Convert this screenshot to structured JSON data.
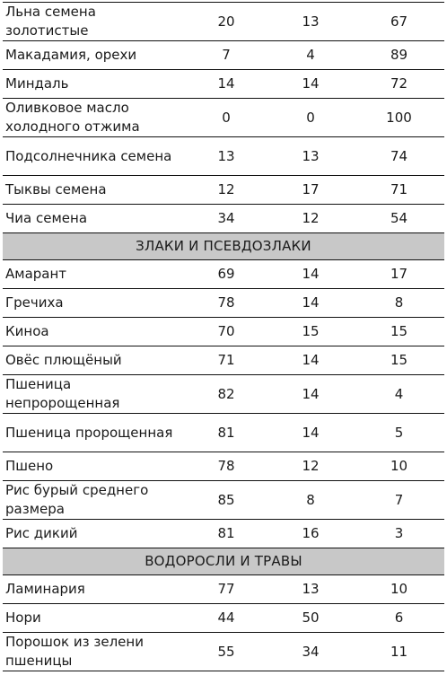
{
  "table": {
    "groups": [
      {
        "title": "",
        "rows": [
          {
            "name": "Льна семена золотистые",
            "a": "20",
            "b": "13",
            "c": "67"
          },
          {
            "name": "Макадамия, орехи",
            "a": "7",
            "b": "4",
            "c": "89"
          },
          {
            "name": "Миндаль",
            "a": "14",
            "b": "14",
            "c": "72"
          },
          {
            "name": "Оливковое масло холодного отжима",
            "a": "0",
            "b": "0",
            "c": "100"
          },
          {
            "name": "Подсолнечника семена",
            "a": "13",
            "b": "13",
            "c": "74"
          },
          {
            "name": "Тыквы семена",
            "a": "12",
            "b": "17",
            "c": "71"
          },
          {
            "name": "Чиа семена",
            "a": "34",
            "b": "12",
            "c": "54"
          }
        ]
      },
      {
        "title": "ЗЛАКИ И ПСЕВДОЗЛАКИ",
        "rows": [
          {
            "name": "Амарант",
            "a": "69",
            "b": "14",
            "c": "17"
          },
          {
            "name": "Гречиха",
            "a": "78",
            "b": "14",
            "c": "8"
          },
          {
            "name": "Киноа",
            "a": "70",
            "b": "15",
            "c": "15"
          },
          {
            "name": "Овёс плющёный",
            "a": "71",
            "b": "14",
            "c": "15"
          },
          {
            "name": "Пшеница непророщенная",
            "a": "82",
            "b": "14",
            "c": "4"
          },
          {
            "name": "Пшеница пророщенная",
            "a": "81",
            "b": "14",
            "c": "5"
          },
          {
            "name": "Пшено",
            "a": "78",
            "b": "12",
            "c": "10"
          },
          {
            "name": "Рис бурый среднего размера",
            "a": "85",
            "b": "8",
            "c": "7"
          },
          {
            "name": "Рис дикий",
            "a": "81",
            "b": "16",
            "c": "3"
          }
        ]
      },
      {
        "title": "ВОДОРОСЛИ И ТРАВЫ",
        "rows": [
          {
            "name": "Ламинария",
            "a": "77",
            "b": "13",
            "c": "10"
          },
          {
            "name": "Нори",
            "a": "44",
            "b": "50",
            "c": "6"
          },
          {
            "name": "Порошок из зелени пшеницы",
            "a": "55",
            "b": "34",
            "c": "11"
          }
        ]
      }
    ]
  }
}
